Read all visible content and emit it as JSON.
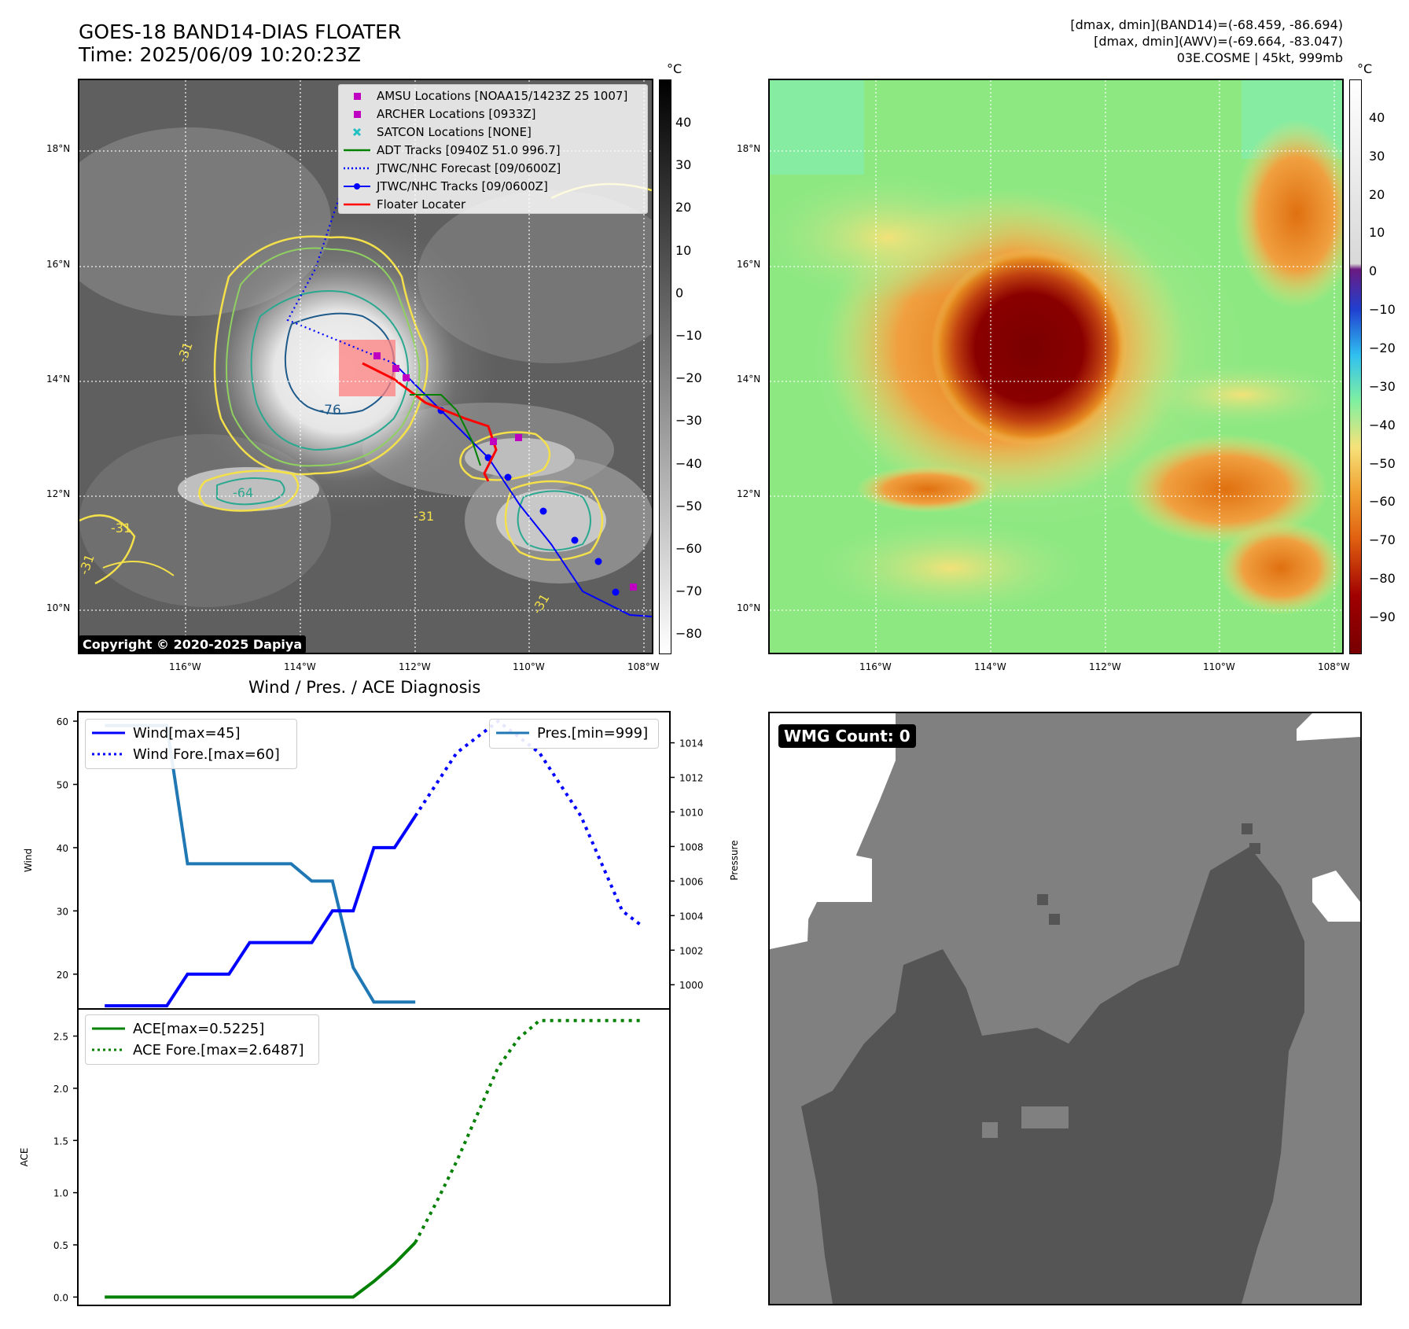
{
  "header": {
    "title_line1": "GOES-18 BAND14-DIAS FLOATER",
    "title_line2": "Time: 2025/06/09 10:20:23Z",
    "info_line1": "[dmax, dmin](BAND14)=(-68.459, -86.694)",
    "info_line2": "[dmax, dmin](AWV)=(-69.664, -83.047)",
    "info_line3": "03E.COSME | 45kt, 999mb"
  },
  "map_axes": {
    "lat_labels": [
      "18°N",
      "16°N",
      "14°N",
      "12°N",
      "10°N"
    ],
    "lon_labels": [
      "116°W",
      "114°W",
      "112°W",
      "110°W",
      "108°W"
    ]
  },
  "ir_panel": {
    "colorbar_unit": "°C",
    "colorbar_ticks": [
      "40",
      "30",
      "20",
      "10",
      "0",
      "−10",
      "−20",
      "−30",
      "−40",
      "−50",
      "−60",
      "−70",
      "−80"
    ],
    "contour_labels": [
      "-31",
      "-76",
      "-64",
      "-31",
      "-31",
      "-31",
      "-31"
    ],
    "copyright": "Copyright © 2020-2025 Dapiya",
    "legend": [
      {
        "label": "AMSU Locations [NOAA15/1423Z 25 1007]",
        "symbol": "magenta-square",
        "color": "#c000c0"
      },
      {
        "label": "ARCHER Locations [0933Z]",
        "symbol": "magenta-square",
        "color": "#c000c0"
      },
      {
        "label": "SATCON Locations [NONE]",
        "symbol": "cyan-x",
        "color": "#20c0c0"
      },
      {
        "label": "ADT Tracks [0940Z 51.0 996.7]",
        "symbol": "green-line",
        "color": "#008000"
      },
      {
        "label": "JTWC/NHC Forecast [09/0600Z]",
        "symbol": "blue-dotted-line",
        "color": "#0000ff"
      },
      {
        "label": "JTWC/NHC Tracks [09/0600Z]",
        "symbol": "blue-line-dot",
        "color": "#0000ff"
      },
      {
        "label": "Floater Locater",
        "symbol": "red-line",
        "color": "#ff0000"
      }
    ]
  },
  "awv_panel": {
    "colorbar_unit": "°C",
    "colorbar_ticks": [
      "40",
      "30",
      "20",
      "10",
      "0",
      "−10",
      "−20",
      "−30",
      "−40",
      "−50",
      "−60",
      "−70",
      "−80",
      "−90"
    ]
  },
  "diag_title": "Wind / Pres. / ACE Diagnosis",
  "wmg": {
    "label": "WMG Count: 0"
  },
  "chart_data": [
    {
      "type": "line",
      "title": "Wind / Pres. / ACE Diagnosis",
      "ylabel": "Wind",
      "y2label": "Pressure",
      "ylim": [
        14.5,
        61.5
      ],
      "y2lim": [
        998.6,
        1015.8
      ],
      "yticks": [
        20,
        30,
        40,
        50,
        60
      ],
      "y2ticks": [
        1000,
        1002,
        1004,
        1006,
        1008,
        1010,
        1012,
        1014
      ],
      "grid": false,
      "legend_left": "upper left",
      "legend_right": "upper right",
      "series": [
        {
          "name": "Wind[max=45]",
          "style": "solid",
          "color": "#0000ff",
          "axis": "left",
          "x": [
            0,
            3,
            4,
            6,
            7,
            9,
            10,
            11,
            12,
            13,
            14,
            15
          ],
          "y": [
            15,
            15,
            20,
            20,
            25,
            25,
            25,
            30,
            30,
            40,
            40,
            45
          ]
        },
        {
          "name": "Wind Fore.[max=60]",
          "style": "dotted",
          "color": "#0000ff",
          "axis": "left",
          "x": [
            15,
            16,
            17,
            18,
            19,
            20,
            21,
            22,
            23,
            24,
            25,
            26
          ],
          "y": [
            45,
            50,
            55,
            57.5,
            60,
            57.5,
            55,
            50,
            45,
            37.5,
            30,
            27.5
          ]
        },
        {
          "name": "Pres.[min=999]",
          "style": "solid",
          "color": "#1f77b4",
          "axis": "right",
          "x": [
            0,
            1,
            2,
            3,
            4,
            5,
            6,
            7,
            8,
            9,
            10,
            11,
            12,
            13,
            14,
            15
          ],
          "y": [
            1015,
            1015,
            1015,
            1015,
            1007,
            1007,
            1007,
            1007,
            1007,
            1007,
            1006,
            1006,
            1001,
            999,
            999,
            999
          ]
        }
      ]
    },
    {
      "type": "line",
      "ylabel": "ACE",
      "ylim": [
        -0.08,
        2.76
      ],
      "yticks": [
        0.0,
        0.5,
        1.0,
        1.5,
        2.0,
        2.5
      ],
      "grid": false,
      "legend": "upper left",
      "series": [
        {
          "name": "ACE[max=0.5225]",
          "style": "solid",
          "color": "#008000",
          "x": [
            0,
            12,
            13,
            14,
            15
          ],
          "y": [
            0,
            0,
            0.15,
            0.32,
            0.5225
          ]
        },
        {
          "name": "ACE Fore.[max=2.6487]",
          "style": "dotted",
          "color": "#008000",
          "x": [
            15,
            16,
            17,
            18,
            19,
            20,
            21,
            22,
            23,
            24,
            25,
            26
          ],
          "y": [
            0.5225,
            0.9,
            1.3,
            1.75,
            2.2,
            2.48,
            2.6487,
            2.6487,
            2.6487,
            2.6487,
            2.6487,
            2.6487
          ]
        }
      ]
    }
  ]
}
